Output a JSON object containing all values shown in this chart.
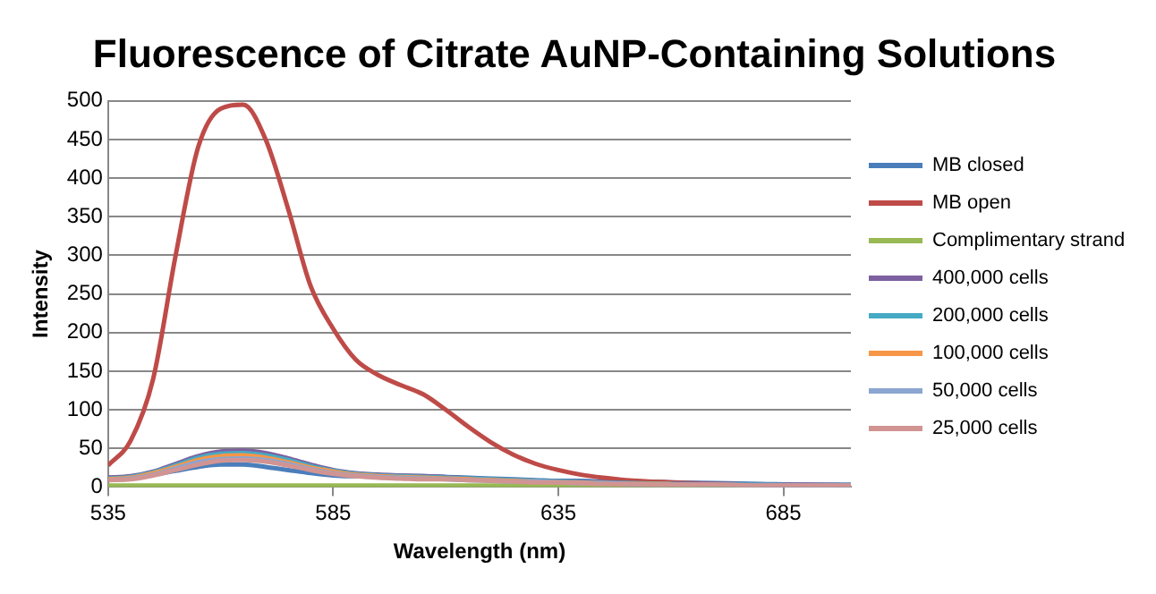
{
  "chart_data": {
    "type": "line",
    "title": "Fluorescence of Citrate AuNP-Containing Solutions",
    "xlabel": "Wavelength (nm)",
    "ylabel": "Intensity",
    "xlim": [
      535,
      700
    ],
    "xticks": [
      535,
      585,
      635,
      685
    ],
    "ylim": [
      0,
      500
    ],
    "yticks": [
      0,
      50,
      100,
      150,
      200,
      250,
      300,
      350,
      400,
      450,
      500
    ],
    "grid": "y",
    "legend": "right",
    "marker": "none",
    "line_style": "solid",
    "x": [
      535,
      540,
      545,
      550,
      555,
      560,
      565,
      570,
      575,
      580,
      585,
      590,
      595,
      600,
      605,
      610,
      615,
      620,
      625,
      630,
      635,
      640,
      645,
      650,
      660,
      670,
      680,
      690,
      700
    ],
    "series": [
      {
        "name": "MB closed",
        "color": "#4a7ebb",
        "values": [
          12,
          13,
          16,
          21,
          26,
          29,
          29,
          26,
          22,
          18,
          15,
          14,
          14,
          14,
          14,
          13,
          12,
          11,
          10,
          9,
          8,
          8,
          7,
          7,
          6,
          5,
          4,
          3,
          3
        ]
      },
      {
        "name": "MB open",
        "color": "#be4b48",
        "values": [
          28,
          60,
          140,
          300,
          440,
          490,
          495,
          450,
          360,
          260,
          205,
          165,
          145,
          132,
          120,
          100,
          78,
          58,
          42,
          30,
          22,
          16,
          12,
          9,
          6,
          4,
          3,
          2,
          2
        ]
      },
      {
        "name": "Complimentary strand",
        "color": "#98b954",
        "values": [
          2,
          2,
          2,
          2,
          2,
          2,
          2,
          2,
          2,
          2,
          2,
          2,
          2,
          2,
          2,
          2,
          2,
          2,
          2,
          2,
          2,
          2,
          2,
          2,
          2,
          2,
          2,
          null,
          null
        ]
      },
      {
        "name": "400,000 cells",
        "color": "#7d60a0",
        "values": [
          12,
          14,
          20,
          30,
          40,
          46,
          47,
          44,
          37,
          29,
          22,
          18,
          16,
          15,
          14,
          13,
          11,
          10,
          9,
          8,
          7,
          6,
          6,
          5,
          4,
          4,
          3,
          3,
          2
        ]
      },
      {
        "name": "200,000 cells",
        "color": "#46aac5",
        "values": [
          11,
          13,
          19,
          28,
          38,
          43,
          44,
          41,
          35,
          27,
          21,
          17,
          15,
          14,
          13,
          12,
          11,
          10,
          9,
          8,
          7,
          6,
          5,
          5,
          4,
          3,
          3,
          2,
          2
        ]
      },
      {
        "name": "100,000 cells",
        "color": "#f79646",
        "values": [
          10,
          12,
          18,
          26,
          35,
          40,
          41,
          38,
          32,
          25,
          20,
          16,
          14,
          13,
          12,
          11,
          10,
          9,
          8,
          7,
          6,
          6,
          5,
          4,
          4,
          null,
          null,
          null,
          null
        ]
      },
      {
        "name": "50,000 cells",
        "color": "#8ba6d0",
        "values": [
          9,
          11,
          16,
          24,
          32,
          36,
          37,
          35,
          30,
          23,
          18,
          15,
          13,
          12,
          11,
          10,
          9,
          8,
          7,
          7,
          6,
          5,
          5,
          4,
          3,
          3,
          2,
          2,
          2
        ]
      },
      {
        "name": "25,000 cells",
        "color": "#d19492",
        "values": [
          9,
          10,
          15,
          22,
          29,
          34,
          35,
          33,
          28,
          22,
          17,
          14,
          12,
          11,
          10,
          10,
          9,
          8,
          7,
          6,
          6,
          5,
          4,
          4,
          3,
          3,
          2,
          2,
          2
        ]
      }
    ]
  }
}
